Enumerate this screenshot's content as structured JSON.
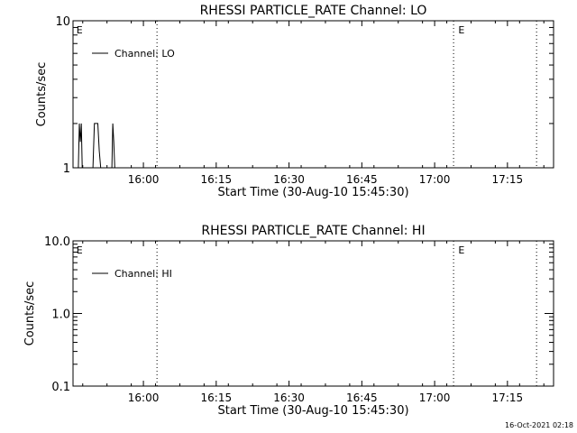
{
  "timestamp": "16-Oct-2021 02:18",
  "chart_data": [
    {
      "type": "line",
      "title": "RHESSI PARTICLE_RATE Channel: LO",
      "xlabel": "Start Time (30-Aug-10 15:45:30)",
      "ylabel": "Counts/sec",
      "yscale": "log",
      "ylim": [
        1,
        10
      ],
      "yticks": [
        1,
        10
      ],
      "ytick_labels": [
        "1",
        "10"
      ],
      "x_units": "minutes since 15:45:30",
      "xlim": [
        0,
        99
      ],
      "xticks": [
        14.5,
        29.5,
        44.5,
        59.5,
        74.5,
        89.5
      ],
      "xtick_labels": [
        "16:00",
        "16:15",
        "16:30",
        "16:45",
        "17:00",
        "17:15"
      ],
      "legend": {
        "label": "Channel: LO",
        "placement": "top-left"
      },
      "markers": [
        {
          "label": "E",
          "x": 0.5
        },
        {
          "label": "E",
          "x": 79.2
        }
      ],
      "dotted_lines_x": [
        17.3,
        78.4,
        95.5
      ],
      "series": [
        {
          "name": "Channel: LO",
          "x": [
            0,
            1.1,
            1.3,
            1.5,
            1.7,
            1.9,
            4.1,
            4.4,
            5.1,
            5.4,
            5.7,
            8.0,
            8.2,
            8.4,
            8.6,
            8.9,
            99
          ],
          "y": [
            1,
            1,
            2,
            1.5,
            2,
            1,
            1,
            2,
            2,
            1.3,
            1,
            1,
            2,
            1.5,
            1,
            1,
            1
          ]
        }
      ]
    },
    {
      "type": "line",
      "title": "RHESSI PARTICLE_RATE Channel: HI",
      "xlabel": "Start Time (30-Aug-10 15:45:30)",
      "ylabel": "Counts/sec",
      "yscale": "log",
      "ylim": [
        0.1,
        10
      ],
      "yticks": [
        0.1,
        1,
        10
      ],
      "ytick_labels": [
        "0.1",
        "1.0",
        "10.0"
      ],
      "x_units": "minutes since 15:45:30",
      "xlim": [
        0,
        99
      ],
      "xticks": [
        14.5,
        29.5,
        44.5,
        59.5,
        74.5,
        89.5
      ],
      "xtick_labels": [
        "16:00",
        "16:15",
        "16:30",
        "16:45",
        "17:00",
        "17:15"
      ],
      "legend": {
        "label": "Channel: HI",
        "placement": "top-left"
      },
      "markers": [
        {
          "label": "E",
          "x": 0.5
        },
        {
          "label": "E",
          "x": 79.2
        }
      ],
      "dotted_lines_x": [
        17.3,
        78.4,
        95.5
      ],
      "series": [
        {
          "name": "Channel: HI",
          "x": [],
          "y": []
        }
      ]
    }
  ]
}
